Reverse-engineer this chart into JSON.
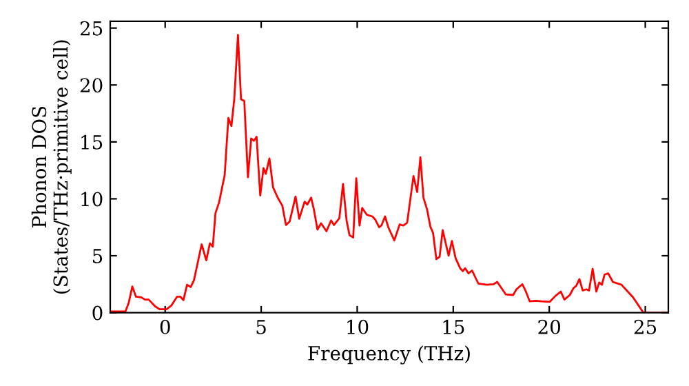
{
  "chart_data": {
    "type": "line",
    "xlabel": "Frequency (THz)",
    "ylabel": "Phonon DOS\n(States/THz·primitive cell)",
    "xlim": [
      -2.86,
      26.2
    ],
    "ylim": [
      0,
      25.6
    ],
    "xticks": [
      0,
      5,
      10,
      15,
      20,
      25
    ],
    "yticks": [
      0,
      5,
      10,
      15,
      20,
      25
    ],
    "grid": false,
    "legend": false,
    "marker": "none",
    "line_style": "solid",
    "series": [
      {
        "color": "#ff0000",
        "x": [
          -2.86,
          -2.07,
          -1.9,
          -1.71,
          -1.52,
          -1.24,
          -1.05,
          -0.86,
          -0.52,
          -0.29,
          0.07,
          0.31,
          0.62,
          0.79,
          0.95,
          1.14,
          1.33,
          1.5,
          1.9,
          2.14,
          2.33,
          2.48,
          2.62,
          2.81,
          3.1,
          3.29,
          3.45,
          3.6,
          3.79,
          3.95,
          4.12,
          4.31,
          4.48,
          4.62,
          4.76,
          4.95,
          5.12,
          5.24,
          5.43,
          5.62,
          5.86,
          6.1,
          6.29,
          6.48,
          6.79,
          6.98,
          7.26,
          7.4,
          7.6,
          7.74,
          7.93,
          8.12,
          8.4,
          8.64,
          8.79,
          9.07,
          9.26,
          9.45,
          9.6,
          9.79,
          9.95,
          10.12,
          10.26,
          10.5,
          10.79,
          10.93,
          11.14,
          11.26,
          11.45,
          11.62,
          11.93,
          12.21,
          12.4,
          12.6,
          12.93,
          13.12,
          13.29,
          13.45,
          13.64,
          13.81,
          13.95,
          14.12,
          14.29,
          14.45,
          14.62,
          14.76,
          14.93,
          15.12,
          15.36,
          15.5,
          15.62,
          15.79,
          15.98,
          16.31,
          16.74,
          17.1,
          17.29,
          17.74,
          18.12,
          18.29,
          18.6,
          18.76,
          18.98,
          19.31,
          19.6,
          20.02,
          20.31,
          20.6,
          20.79,
          21.07,
          21.26,
          21.4,
          21.57,
          21.74,
          21.93,
          22.07,
          22.26,
          22.45,
          22.6,
          22.74,
          22.88,
          23.07,
          23.31,
          23.76,
          24.36,
          24.9,
          26.2
        ],
        "values": [
          0.1,
          0.1,
          0.85,
          2.3,
          1.4,
          1.35,
          1.15,
          1.15,
          0.55,
          0.3,
          0.3,
          0.6,
          1.4,
          1.4,
          1.1,
          2.45,
          2.25,
          2.85,
          6.0,
          4.6,
          6.1,
          5.8,
          8.75,
          9.7,
          12.1,
          17.1,
          16.4,
          18.8,
          24.4,
          18.75,
          18.6,
          11.9,
          15.3,
          15.1,
          15.45,
          10.3,
          12.7,
          12.2,
          13.55,
          11.0,
          10.1,
          9.4,
          7.7,
          8.0,
          10.2,
          8.25,
          9.75,
          9.5,
          10.1,
          9.1,
          7.3,
          7.85,
          7.15,
          8.1,
          7.7,
          8.3,
          11.3,
          8.05,
          6.8,
          6.6,
          11.8,
          7.65,
          9.2,
          8.6,
          8.45,
          8.2,
          7.5,
          7.65,
          8.45,
          7.5,
          6.35,
          7.75,
          7.65,
          7.9,
          12.0,
          10.6,
          13.65,
          10.1,
          9.05,
          7.55,
          7.0,
          4.7,
          4.9,
          7.25,
          6.0,
          5.0,
          6.3,
          4.8,
          3.9,
          3.65,
          3.9,
          3.45,
          3.7,
          2.55,
          2.45,
          2.5,
          2.7,
          1.6,
          1.55,
          2.05,
          2.5,
          1.95,
          1.0,
          1.05,
          1.0,
          0.95,
          1.45,
          1.85,
          1.15,
          1.55,
          2.15,
          2.35,
          2.95,
          1.95,
          2.05,
          1.95,
          3.85,
          1.85,
          2.65,
          2.45,
          3.35,
          3.45,
          2.7,
          2.45,
          1.35,
          0.0,
          0.0
        ]
      }
    ]
  }
}
